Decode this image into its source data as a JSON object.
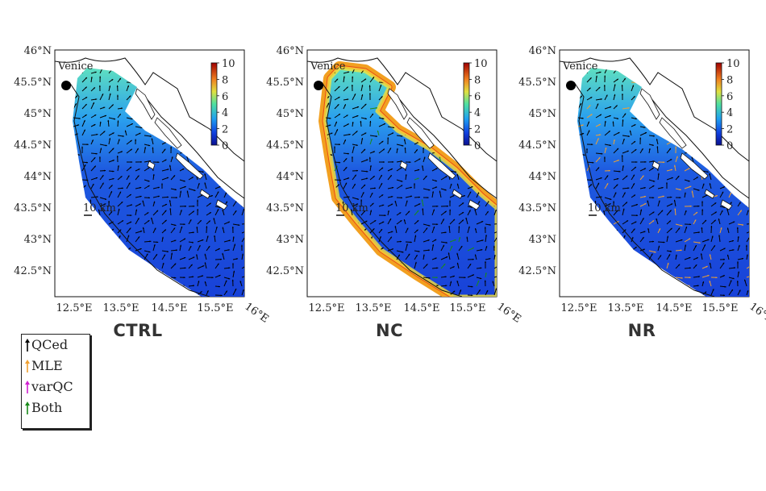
{
  "panels": [
    {
      "id": "ctrl",
      "caption": "CTRL",
      "nc_edge": false,
      "nr_edge": false
    },
    {
      "id": "nc",
      "caption": "NC",
      "nc_edge": true,
      "nr_edge": false
    },
    {
      "id": "nr",
      "caption": "NR",
      "nc_edge": false,
      "nr_edge": true
    }
  ],
  "map": {
    "city_label": "Venice",
    "scale_label": "10 km",
    "lat_labels": [
      "46°N",
      "45.5°N",
      "45°N",
      "44.5°N",
      "44°N",
      "43.5°N",
      "43°N",
      "42.5°N"
    ],
    "lon_labels": [
      "12.5°E",
      "13.5°E",
      "14.5°E",
      "15.5°E",
      "16°E"
    ],
    "colorbar_ticks": [
      "10",
      "8",
      "6",
      "4",
      "2",
      "0"
    ],
    "colorbar_range": [
      0,
      10
    ]
  },
  "legend": {
    "items": [
      {
        "label": "QCed",
        "color": "#000000"
      },
      {
        "label": "MLE",
        "color": "#f0a030"
      },
      {
        "label": "varQC",
        "color": "#d020d0"
      },
      {
        "label": "Both",
        "color": "#1a8a1a"
      }
    ]
  }
}
